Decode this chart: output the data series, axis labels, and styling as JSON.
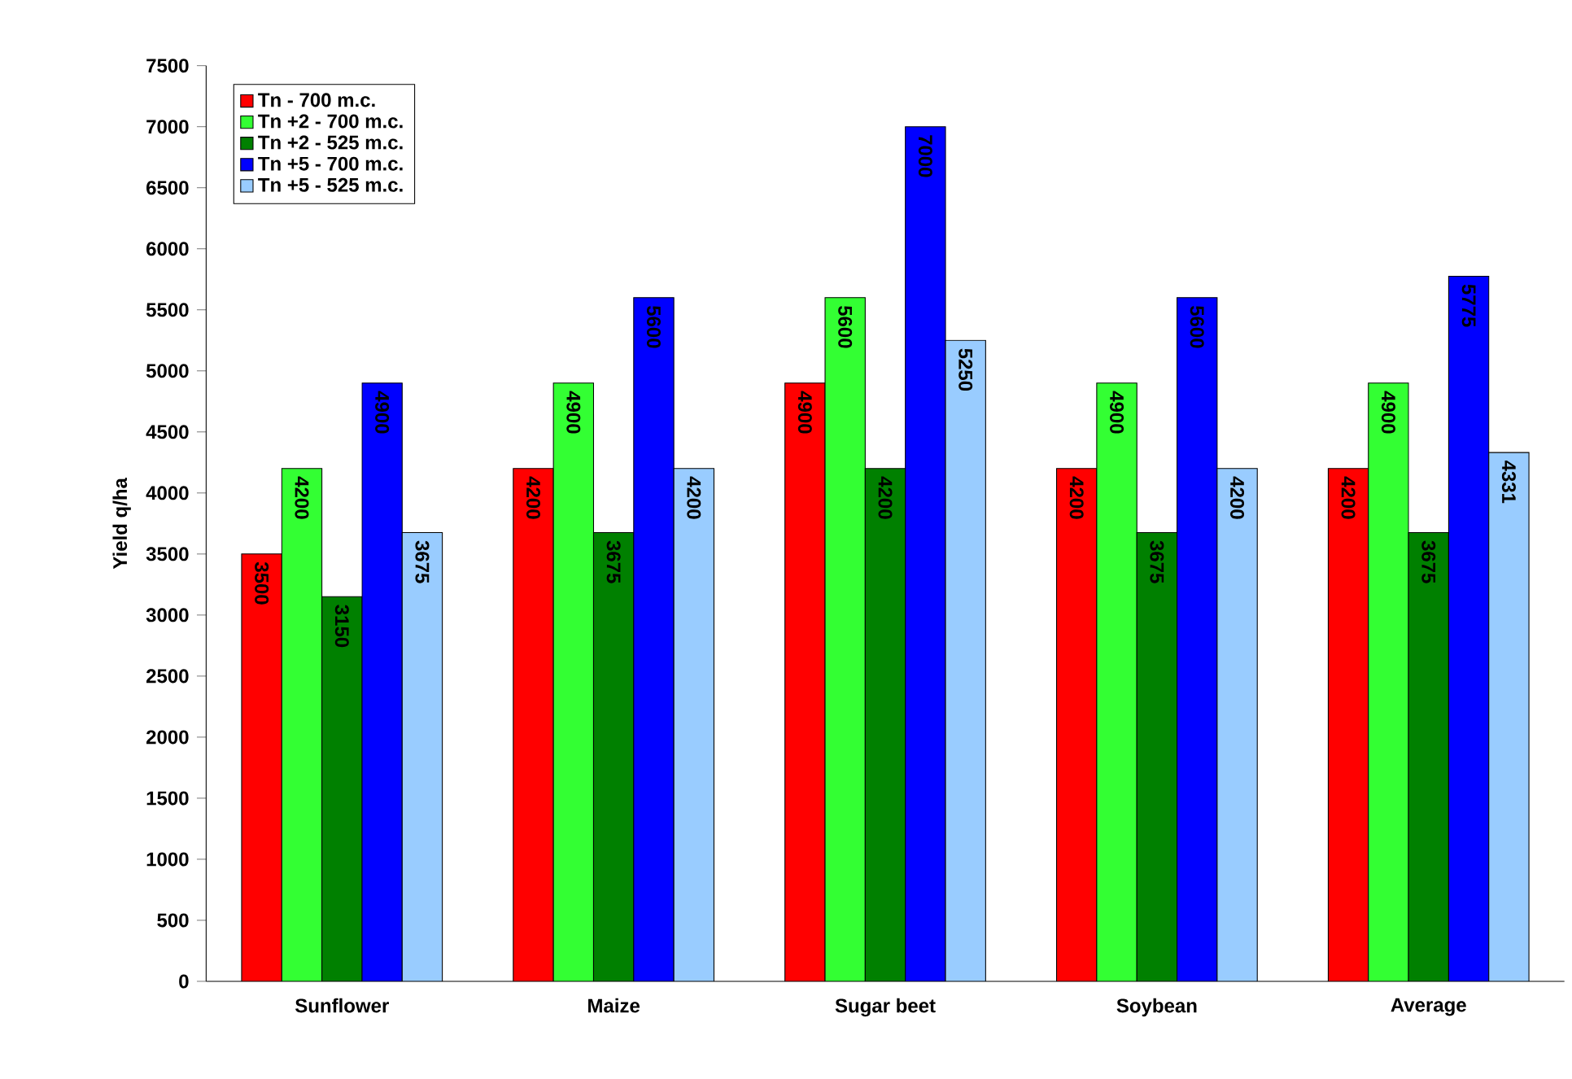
{
  "chart_data": {
    "type": "bar",
    "ylabel": "Yield q/ha",
    "categories": [
      "Sunflower",
      "Maize",
      "Sugar beet",
      "Soybean",
      "Average"
    ],
    "series": [
      {
        "name": "Tn - 700 m.c.",
        "color": "#ff0000",
        "values": [
          3500,
          4200,
          4900,
          4200,
          4200
        ]
      },
      {
        "name": "Tn +2 - 700 m.c.",
        "color": "#33ff33",
        "values": [
          4200,
          4900,
          5600,
          4900,
          4900
        ]
      },
      {
        "name": "Tn +2 - 525 m.c.",
        "color": "#008000",
        "values": [
          3150,
          3675,
          4200,
          3675,
          3675
        ]
      },
      {
        "name": "Tn +5 - 700 m.c.",
        "color": "#0000ff",
        "values": [
          4900,
          5600,
          7000,
          5600,
          5775
        ]
      },
      {
        "name": "Tn +5 - 525 m.c.",
        "color": "#99ccff",
        "values": [
          3675,
          4200,
          5250,
          4200,
          4331
        ]
      }
    ],
    "ylim": [
      0,
      7500
    ],
    "yticks": [
      0,
      500,
      1000,
      1500,
      2000,
      2500,
      3000,
      3500,
      4000,
      4500,
      5000,
      5500,
      6000,
      6500,
      7000,
      7500
    ],
    "data_labels": true,
    "legend": "top left"
  }
}
